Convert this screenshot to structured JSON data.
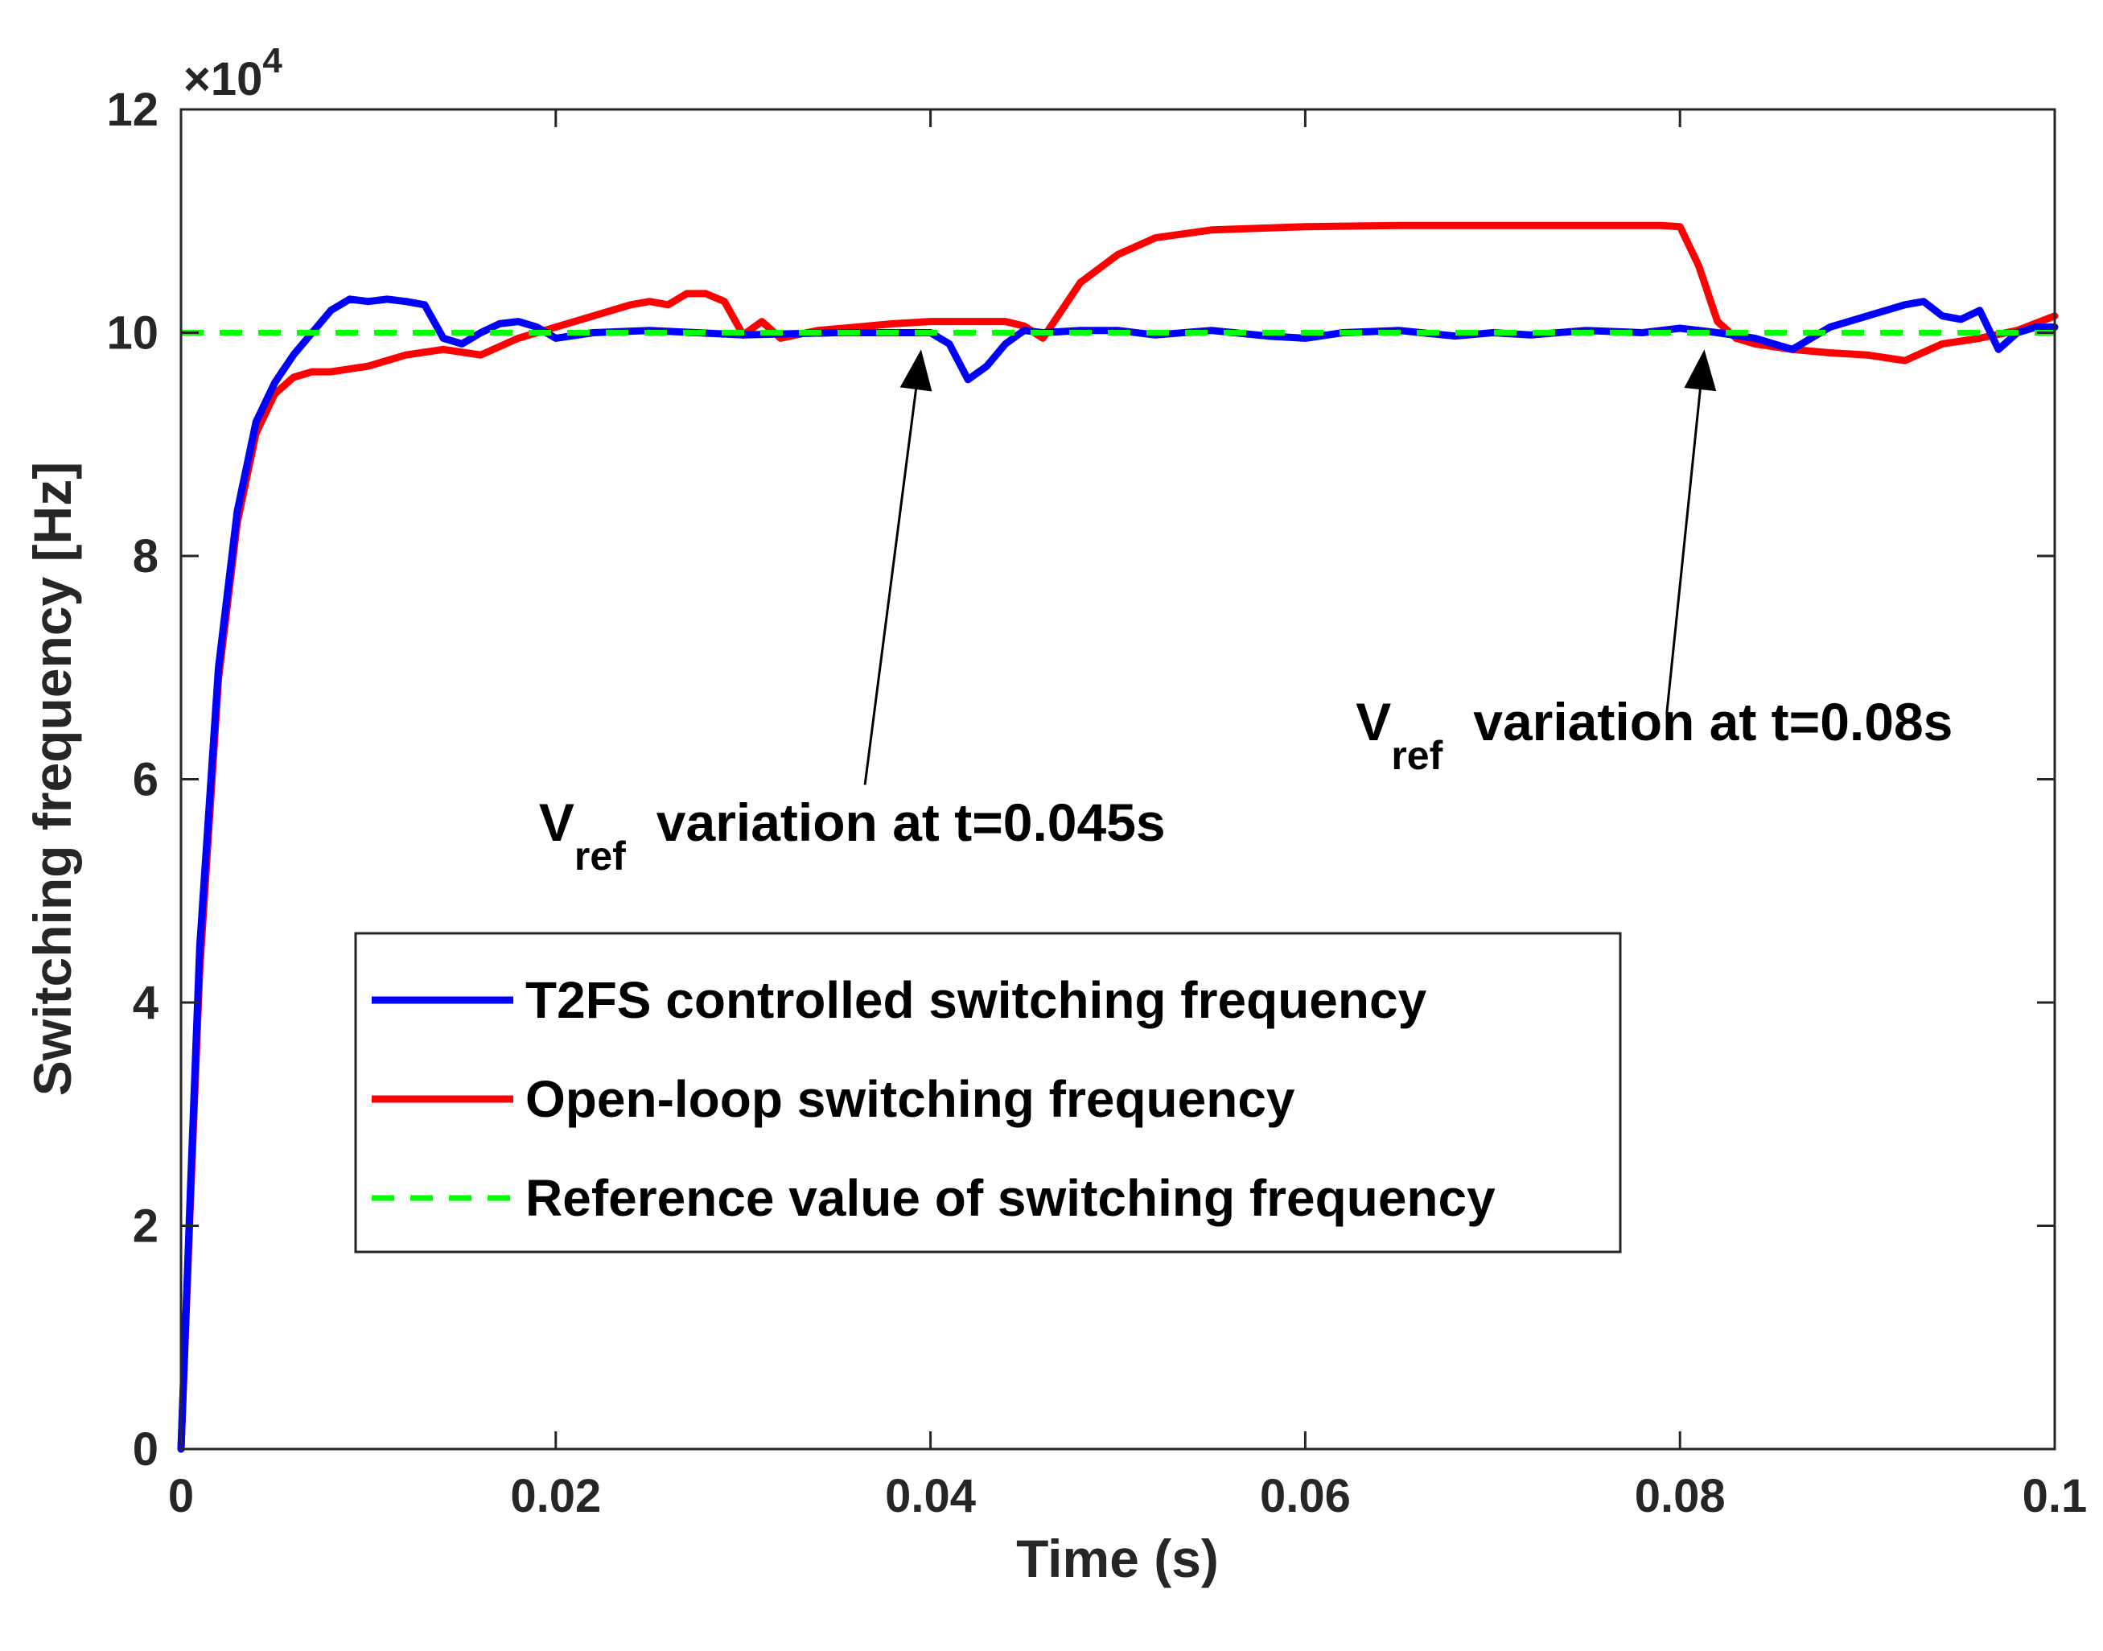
{
  "chart_data": {
    "type": "line",
    "xlabel": "Time (s)",
    "ylabel": "Switching frequency [Hz]",
    "xlim": [
      0,
      0.1
    ],
    "ylim": [
      0,
      12
    ],
    "y_multiplier": "×10",
    "y_multiplier_exp": "4",
    "grid": false,
    "legend_position": "lower-center",
    "x_ticks": [
      0,
      0.02,
      0.04,
      0.06,
      0.08,
      0.1
    ],
    "x_tick_labels": [
      "0",
      "0.02",
      "0.04",
      "0.06",
      "0.08",
      "0.1"
    ],
    "y_ticks": [
      0,
      2,
      4,
      6,
      8,
      10,
      12
    ],
    "y_tick_labels": [
      "0",
      "2",
      "4",
      "6",
      "8",
      "10",
      "12"
    ],
    "series": [
      {
        "name": "T2FS controlled switching frequency",
        "color": "#0000ff",
        "style": "solid",
        "x": [
          0,
          0.0005,
          0.001,
          0.002,
          0.003,
          0.004,
          0.005,
          0.006,
          0.007,
          0.008,
          0.009,
          0.01,
          0.011,
          0.012,
          0.013,
          0.014,
          0.015,
          0.016,
          0.017,
          0.018,
          0.019,
          0.02,
          0.022,
          0.025,
          0.03,
          0.035,
          0.038,
          0.04,
          0.041,
          0.042,
          0.043,
          0.044,
          0.045,
          0.046,
          0.048,
          0.05,
          0.052,
          0.055,
          0.058,
          0.06,
          0.062,
          0.065,
          0.068,
          0.07,
          0.072,
          0.075,
          0.078,
          0.08,
          0.081,
          0.082,
          0.084,
          0.086,
          0.088,
          0.09,
          0.092,
          0.093,
          0.094,
          0.095,
          0.096,
          0.097,
          0.098,
          0.099,
          0.1
        ],
        "values": [
          0,
          2.3,
          4.5,
          7.0,
          8.4,
          9.2,
          9.55,
          9.8,
          10.0,
          10.2,
          10.3,
          10.28,
          10.3,
          10.28,
          10.25,
          9.95,
          9.9,
          10.0,
          10.08,
          10.1,
          10.05,
          9.95,
          10.0,
          10.02,
          9.98,
          10.0,
          10.0,
          10.0,
          9.9,
          9.58,
          9.7,
          9.9,
          10.02,
          10.0,
          10.02,
          10.02,
          9.98,
          10.02,
          9.97,
          9.95,
          10.0,
          10.02,
          9.97,
          10.0,
          9.98,
          10.02,
          10.0,
          10.04,
          10.02,
          10.0,
          9.95,
          9.85,
          10.05,
          10.15,
          10.25,
          10.28,
          10.15,
          10.12,
          10.2,
          9.85,
          10.0,
          10.05,
          10.05
        ]
      },
      {
        "name": "Open-loop switching frequency",
        "color": "#ff0000",
        "style": "solid",
        "x": [
          0,
          0.0005,
          0.001,
          0.002,
          0.003,
          0.004,
          0.005,
          0.006,
          0.007,
          0.008,
          0.01,
          0.012,
          0.014,
          0.016,
          0.018,
          0.02,
          0.022,
          0.024,
          0.025,
          0.026,
          0.027,
          0.028,
          0.029,
          0.03,
          0.031,
          0.032,
          0.034,
          0.036,
          0.038,
          0.04,
          0.042,
          0.044,
          0.045,
          0.046,
          0.047,
          0.048,
          0.05,
          0.052,
          0.055,
          0.06,
          0.065,
          0.07,
          0.075,
          0.079,
          0.08,
          0.081,
          0.082,
          0.083,
          0.084,
          0.086,
          0.088,
          0.09,
          0.092,
          0.094,
          0.096,
          0.098,
          0.1
        ],
        "values": [
          0,
          2.2,
          4.3,
          6.9,
          8.3,
          9.1,
          9.45,
          9.6,
          9.65,
          9.65,
          9.7,
          9.8,
          9.85,
          9.8,
          9.95,
          10.05,
          10.15,
          10.25,
          10.28,
          10.25,
          10.35,
          10.35,
          10.28,
          9.98,
          10.1,
          9.95,
          10.02,
          10.05,
          10.08,
          10.1,
          10.1,
          10.1,
          10.06,
          9.95,
          10.2,
          10.45,
          10.7,
          10.85,
          10.92,
          10.95,
          10.96,
          10.96,
          10.96,
          10.96,
          10.95,
          10.6,
          10.1,
          9.95,
          9.9,
          9.85,
          9.82,
          9.8,
          9.75,
          9.9,
          9.95,
          10.02,
          10.15
        ]
      },
      {
        "name": "Reference value of switching frequency",
        "color": "#00ff00",
        "style": "dashed",
        "x": [
          0,
          0.1
        ],
        "values": [
          10,
          10
        ]
      }
    ],
    "annotations": [
      {
        "main": "V",
        "sub": "ref",
        "text": "variation at t=0.045s",
        "arrow_from": [
          0.0365,
          5.95
        ],
        "arrow_to": [
          0.0395,
          9.85
        ],
        "text_anchor": [
          0.0191,
          5.45
        ]
      },
      {
        "main": "V",
        "sub": "ref",
        "text": "variation at t=0.08s",
        "arrow_from": [
          0.0793,
          6.6
        ],
        "arrow_to": [
          0.0813,
          9.85
        ],
        "text_anchor": [
          0.0627,
          6.35
        ]
      }
    ]
  }
}
